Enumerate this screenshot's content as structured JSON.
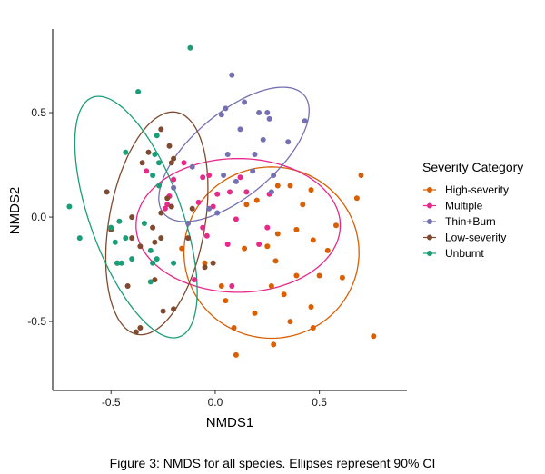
{
  "chart_data": {
    "type": "scatter",
    "xlabel": "NMDS1",
    "ylabel": "NMDS2",
    "xlim": [
      -0.78,
      0.92
    ],
    "ylim": [
      -0.83,
      0.9
    ],
    "x_ticks": [
      -0.5,
      0.0,
      0.5
    ],
    "x_tick_labels": [
      "-0.5",
      "0.0",
      "0.5"
    ],
    "y_ticks": [
      -0.5,
      0.0,
      0.5
    ],
    "y_tick_labels": [
      "-0.5",
      "0.0",
      "0.5"
    ],
    "grid": false,
    "legend": {
      "title": "Severity Category",
      "placement": "right"
    },
    "ellipse_note": "Ellipses represent 90% CI",
    "series": [
      {
        "name": "High-severity",
        "color": "#D95F02",
        "ellipse": {
          "cx": 0.27,
          "cy": -0.17,
          "rx": 0.42,
          "ry": 0.41,
          "angle": 0
        },
        "points": [
          [
            0.3,
            0.15
          ],
          [
            0.36,
            0.15
          ],
          [
            0.46,
            0.13
          ],
          [
            0.7,
            0.2
          ],
          [
            0.68,
            0.09
          ],
          [
            0.42,
            0.06
          ],
          [
            0.2,
            0.08
          ],
          [
            0.3,
            -0.08
          ],
          [
            0.14,
            -0.15
          ],
          [
            0.39,
            -0.06
          ],
          [
            0.47,
            -0.11
          ],
          [
            0.58,
            -0.04
          ],
          [
            0.54,
            -0.16
          ],
          [
            0.25,
            -0.14
          ],
          [
            0.29,
            -0.21
          ],
          [
            0.5,
            -0.28
          ],
          [
            0.61,
            -0.29
          ],
          [
            0.39,
            -0.28
          ],
          [
            0.33,
            -0.37
          ],
          [
            0.27,
            -0.33
          ],
          [
            0.46,
            -0.43
          ],
          [
            0.19,
            -0.46
          ],
          [
            0.36,
            -0.5
          ],
          [
            0.09,
            -0.53
          ],
          [
            0.47,
            -0.53
          ],
          [
            0.76,
            -0.57
          ],
          [
            0.28,
            -0.61
          ],
          [
            0.1,
            -0.66
          ],
          [
            -0.05,
            -0.22
          ],
          [
            0.05,
            -0.4
          ],
          [
            0.03,
            -0.33
          ],
          [
            -0.16,
            -0.15
          ],
          [
            0.15,
            0.06
          ]
        ]
      },
      {
        "name": "Multiple",
        "color": "#E7298A",
        "ellipse": {
          "cx": 0.11,
          "cy": -0.04,
          "rx": 0.49,
          "ry": 0.32,
          "angle": 0
        },
        "points": [
          [
            -0.33,
            0.22
          ],
          [
            -0.15,
            0.26
          ],
          [
            -0.2,
            0.18
          ],
          [
            -0.06,
            0.19
          ],
          [
            -0.03,
            0.2
          ],
          [
            0.12,
            0.19
          ],
          [
            0.07,
            0.12
          ],
          [
            0.01,
            0.11
          ],
          [
            -0.23,
            0.06
          ],
          [
            -0.01,
            0.05
          ],
          [
            0.15,
            0.12
          ],
          [
            -0.22,
            0.1
          ],
          [
            -0.08,
            0.07
          ],
          [
            0.26,
            0.11
          ],
          [
            0.1,
            -0.01
          ],
          [
            0.25,
            -0.05
          ],
          [
            -0.06,
            -0.05
          ],
          [
            -0.04,
            -0.09
          ],
          [
            0.06,
            -0.13
          ],
          [
            0.21,
            -0.13
          ],
          [
            -0.1,
            -0.3
          ],
          [
            0.08,
            -0.33
          ],
          [
            -0.24,
            0.04
          ]
        ]
      },
      {
        "name": "Thin+Burn",
        "color": "#7570B3",
        "ellipse": {
          "cx": 0.09,
          "cy": 0.3,
          "rx": 0.44,
          "ry": 0.2,
          "angle": 40
        },
        "points": [
          [
            0.08,
            0.68
          ],
          [
            0.14,
            0.55
          ],
          [
            0.05,
            0.52
          ],
          [
            0.03,
            0.49
          ],
          [
            0.21,
            0.5
          ],
          [
            0.25,
            0.5
          ],
          [
            0.26,
            0.47
          ],
          [
            0.43,
            0.46
          ],
          [
            0.12,
            0.42
          ],
          [
            0.23,
            0.37
          ],
          [
            0.35,
            0.36
          ],
          [
            0.19,
            0.3
          ],
          [
            0.06,
            0.3
          ],
          [
            0.18,
            0.22
          ],
          [
            0.04,
            0.2
          ],
          [
            0.28,
            0.2
          ],
          [
            0.1,
            0.17
          ],
          [
            -0.11,
            0.24
          ],
          [
            -0.2,
            0.14
          ],
          [
            0.27,
            0.12
          ],
          [
            -0.03,
            0.04
          ],
          [
            -0.13,
            -0.03
          ],
          [
            0.01,
            0.02
          ]
        ]
      },
      {
        "name": "Low-severity",
        "color": "#7F4A2F",
        "ellipse": {
          "cx": -0.28,
          "cy": -0.03,
          "rx": 0.23,
          "ry": 0.54,
          "angle": -10
        },
        "points": [
          [
            -0.26,
            0.42
          ],
          [
            -0.22,
            0.34
          ],
          [
            -0.32,
            0.31
          ],
          [
            -0.35,
            0.26
          ],
          [
            -0.2,
            0.28
          ],
          [
            -0.21,
            0.26
          ],
          [
            -0.23,
            0.09
          ],
          [
            -0.11,
            0.04
          ],
          [
            -0.52,
            0.12
          ],
          [
            -0.21,
            0.05
          ],
          [
            -0.26,
            0.02
          ],
          [
            -0.4,
            0.0
          ],
          [
            -0.3,
            -0.05
          ],
          [
            -0.26,
            -0.1
          ],
          [
            -0.5,
            -0.06
          ],
          [
            -0.4,
            -0.1
          ],
          [
            -0.36,
            -0.14
          ],
          [
            -0.29,
            -0.12
          ],
          [
            -0.13,
            -0.1
          ],
          [
            -0.01,
            -0.22
          ],
          [
            -0.05,
            -0.24
          ],
          [
            -0.47,
            -0.22
          ],
          [
            -0.29,
            -0.3
          ],
          [
            -0.42,
            -0.33
          ],
          [
            -0.36,
            -0.53
          ],
          [
            -0.25,
            -0.45
          ],
          [
            -0.2,
            -0.44
          ],
          [
            -0.38,
            -0.55
          ]
        ]
      },
      {
        "name": "Unburnt",
        "color": "#1B9E77",
        "ellipse": {
          "cx": -0.38,
          "cy": 0.0,
          "rx": 0.22,
          "ry": 0.61,
          "angle": 20
        },
        "points": [
          [
            -0.12,
            0.81
          ],
          [
            -0.37,
            0.6
          ],
          [
            -0.28,
            0.39
          ],
          [
            -0.29,
            0.3
          ],
          [
            -0.27,
            0.26
          ],
          [
            -0.43,
            0.31
          ],
          [
            -0.27,
            0.15
          ],
          [
            -0.3,
            0.2
          ],
          [
            -0.7,
            0.05
          ],
          [
            -0.5,
            -0.05
          ],
          [
            -0.46,
            -0.02
          ],
          [
            -0.34,
            -0.03
          ],
          [
            -0.65,
            -0.1
          ],
          [
            -0.43,
            -0.1
          ],
          [
            -0.48,
            -0.12
          ],
          [
            -0.4,
            -0.2
          ],
          [
            -0.47,
            -0.22
          ],
          [
            -0.31,
            -0.16
          ],
          [
            -0.28,
            -0.2
          ],
          [
            -0.3,
            -0.22
          ],
          [
            -0.31,
            -0.31
          ],
          [
            -0.45,
            -0.22
          ],
          [
            -0.2,
            -0.22
          ]
        ]
      }
    ]
  },
  "caption": "Figure 3: NMDS for all species. Ellipses represent 90% CI"
}
